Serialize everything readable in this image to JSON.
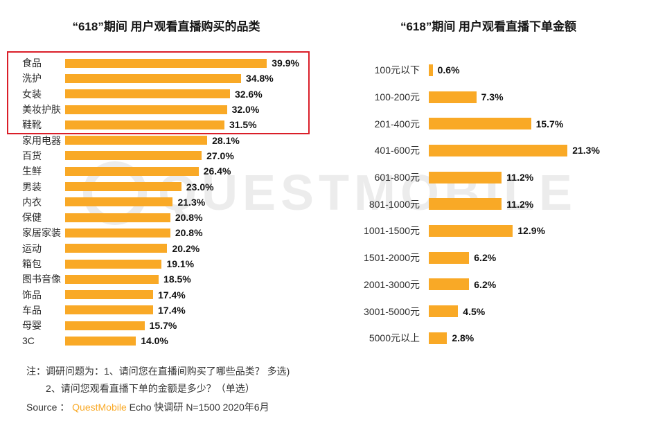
{
  "accent_color": "#F9A926",
  "highlight_color": "#DA1E28",
  "watermark": {
    "text": "QUESTMOBILE"
  },
  "chart_data": [
    {
      "type": "bar",
      "orientation": "horizontal",
      "title": "“618”期间 用户观看直播购买的品类",
      "categories": [
        "食品",
        "洗护",
        "女装",
        "美妆护肤",
        "鞋靴",
        "家用电器",
        "百货",
        "生鲜",
        "男装",
        "内衣",
        "保健",
        "家居家装",
        "运动",
        "箱包",
        "图书音像",
        "饰品",
        "车品",
        "母婴",
        "3C"
      ],
      "values": [
        39.9,
        34.8,
        32.6,
        32.0,
        31.5,
        28.1,
        27.0,
        26.4,
        23.0,
        21.3,
        20.8,
        20.8,
        20.2,
        19.1,
        18.5,
        17.4,
        17.4,
        15.7,
        14.0
      ],
      "value_suffix": "%",
      "xlim": [
        0,
        45
      ],
      "xlabel": "",
      "ylabel": "",
      "legend": false,
      "grid": false,
      "bar_color": "#F9A926",
      "highlight": {
        "rows": [
          0,
          1,
          2,
          3,
          4
        ],
        "style": "red-outline"
      }
    },
    {
      "type": "bar",
      "orientation": "horizontal",
      "title": "“618”期间 用户观看直播下单金额",
      "categories": [
        "100元以下",
        "100-200元",
        "201-400元",
        "401-600元",
        "601-800元",
        "801-1000元",
        "1001-1500元",
        "1501-2000元",
        "2001-3000元",
        "3001-5000元",
        "5000元以上"
      ],
      "values": [
        0.6,
        7.3,
        15.7,
        21.3,
        11.2,
        11.2,
        12.9,
        6.2,
        6.2,
        4.5,
        2.8
      ],
      "value_suffix": "%",
      "xlim": [
        0,
        25
      ],
      "xlabel": "",
      "ylabel": "",
      "legend": false,
      "grid": false,
      "bar_color": "#F9A926"
    }
  ],
  "notes": {
    "line1": "注：调研问题为：1、请问您在直播间购买了哪些品类？ 多选)",
    "line2": "2、请问您观看直播下单的金额是多少？（单选）",
    "source_prefix": "Source ： ",
    "source_brand": "QuestMobile",
    "source_suffix": " Echo 快调研 N=1500 2020年6月"
  }
}
